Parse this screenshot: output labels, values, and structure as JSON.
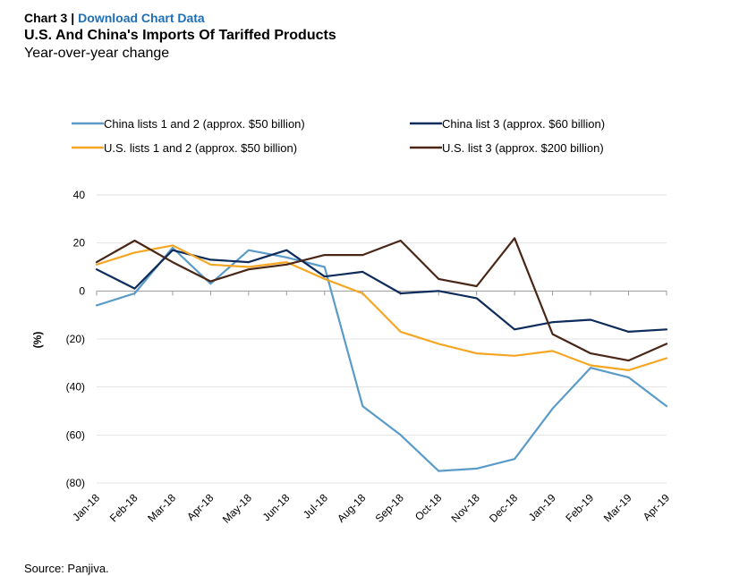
{
  "header": {
    "chart_number": "Chart 3",
    "separator": "|",
    "download_link": "Download Chart Data",
    "title": "U.S. And China's Imports Of Tariffed Products",
    "subtitle": "Year-over-year change"
  },
  "source": "Source: Panjiva.",
  "chart_data": {
    "type": "line",
    "title": "U.S. And China's Imports Of Tariffed Products",
    "subtitle": "Year-over-year change",
    "xlabel": "",
    "ylabel": "(%)",
    "ylim": [
      -80,
      40
    ],
    "yticks": [
      40,
      20,
      0,
      -20,
      -40,
      -60,
      -80
    ],
    "ytick_labels": [
      "40",
      "20",
      "0",
      "(20)",
      "(40)",
      "(60)",
      "(80)"
    ],
    "grid": true,
    "legend_position": "top",
    "categories": [
      "Jan-18",
      "Feb-18",
      "Mar-18",
      "Apr-18",
      "May-18",
      "Jun-18",
      "Jul-18",
      "Aug-18",
      "Sep-18",
      "Oct-18",
      "Nov-18",
      "Dec-18",
      "Jan-19",
      "Feb-19",
      "Mar-19",
      "Apr-19"
    ],
    "series": [
      {
        "name": "China lists 1 and 2 (approx. $50 billion)",
        "color": "#5b9bc8",
        "values": [
          -6,
          -1,
          18,
          3,
          17,
          14,
          10,
          -48,
          -60,
          -75,
          -74,
          -70,
          -49,
          -32,
          -36,
          -48
        ]
      },
      {
        "name": "China list 3 (approx. $60 billion)",
        "color": "#0d2b5b",
        "values": [
          9,
          1,
          17,
          13,
          12,
          17,
          6,
          8,
          -1,
          0,
          -3,
          -16,
          -13,
          -12,
          -17,
          -16
        ]
      },
      {
        "name": "U.S. lists 1 and 2 (approx. $50 billion)",
        "color": "#f5a623",
        "values": [
          11,
          16,
          19,
          11,
          10,
          12,
          5,
          -1,
          -17,
          -22,
          -26,
          -27,
          -25,
          -31,
          -33,
          -28
        ]
      },
      {
        "name": "U.S. list 3 (approx. $200 billion)",
        "color": "#4a2617",
        "values": [
          12,
          21,
          12,
          4,
          9,
          11,
          15,
          15,
          21,
          5,
          2,
          22,
          -18,
          -26,
          -29,
          -22
        ]
      }
    ]
  }
}
